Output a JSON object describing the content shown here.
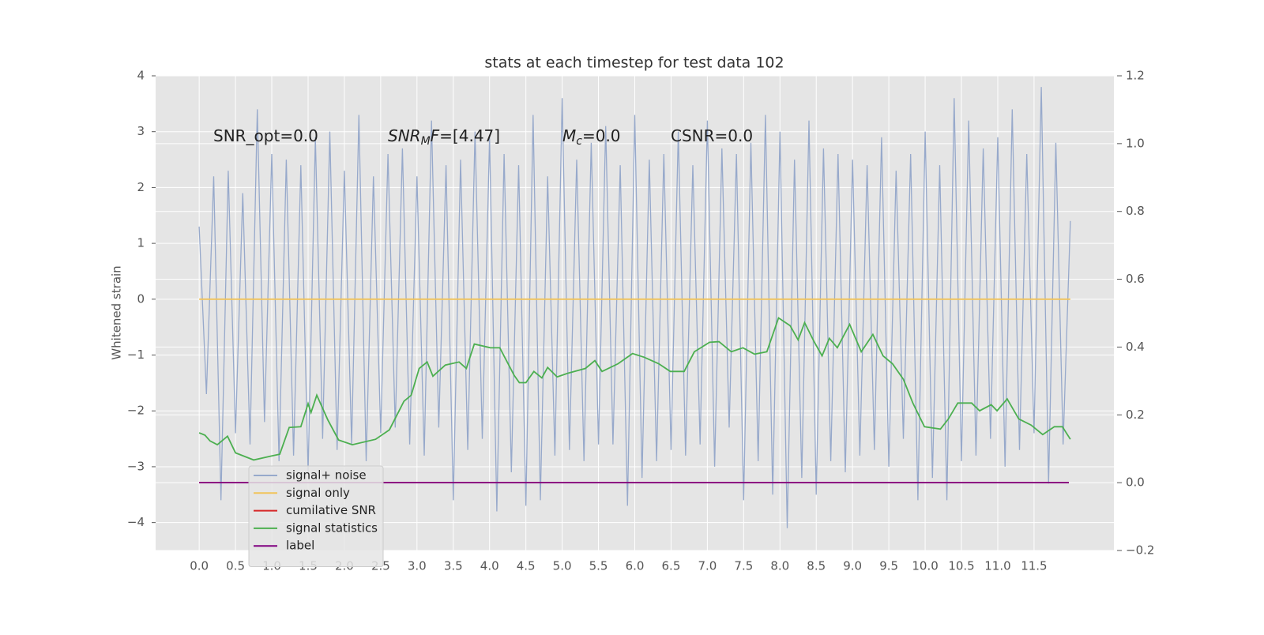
{
  "chart_data": {
    "type": "line",
    "title": "stats at each timestep for test data 102",
    "ylabel": "Whitened strain",
    "xlim": [
      -0.6,
      12.6
    ],
    "ylim": [
      -4.5,
      4
    ],
    "y2lim": [
      -0.2,
      1.2
    ],
    "xticks": [
      {
        "value": 0,
        "label": "0.0"
      },
      {
        "value": 0.5,
        "label": "0.5"
      },
      {
        "value": 1,
        "label": "1.0"
      },
      {
        "value": 1.5,
        "label": "1.5"
      },
      {
        "value": 2,
        "label": "2.0"
      },
      {
        "value": 2.5,
        "label": "2.5"
      },
      {
        "value": 3,
        "label": "3.0"
      },
      {
        "value": 3.5,
        "label": "3.5"
      },
      {
        "value": 4,
        "label": "4.0"
      },
      {
        "value": 4.5,
        "label": "4.5"
      },
      {
        "value": 5,
        "label": "5.0"
      },
      {
        "value": 5.5,
        "label": "5.5"
      },
      {
        "value": 6,
        "label": "6.0"
      },
      {
        "value": 6.5,
        "label": "6.5"
      },
      {
        "value": 7,
        "label": "7.0"
      },
      {
        "value": 7.5,
        "label": "7.5"
      },
      {
        "value": 8,
        "label": "8.0"
      },
      {
        "value": 8.5,
        "label": "8.5"
      },
      {
        "value": 9,
        "label": "9.0"
      },
      {
        "value": 9.5,
        "label": "9.5"
      },
      {
        "value": 10,
        "label": "10.0"
      },
      {
        "value": 10.5,
        "label": "10.5"
      },
      {
        "value": 11,
        "label": "11.0"
      },
      {
        "value": 11.5,
        "label": "11.5"
      }
    ],
    "yticks": [
      {
        "value": -4,
        "label": "−4"
      },
      {
        "value": -3,
        "label": "−3"
      },
      {
        "value": -2,
        "label": "−2"
      },
      {
        "value": -1,
        "label": "−1"
      },
      0,
      1,
      2,
      3,
      4
    ],
    "y2ticks": [
      {
        "value": -0.2,
        "label": "−0.2"
      },
      {
        "value": 0,
        "label": "0.0"
      },
      {
        "value": 0.2,
        "label": "0.2"
      },
      {
        "value": 0.4,
        "label": "0.4"
      },
      {
        "value": 0.6,
        "label": "0.6"
      },
      {
        "value": 0.8,
        "label": "0.8"
      },
      {
        "value": 1,
        "label": "1.0"
      },
      {
        "value": 1.2,
        "label": "1.2"
      }
    ],
    "grid": true,
    "legend": "lower left",
    "annotations": [
      {
        "base": "SNR_opt=0.0"
      },
      {
        "base": "SNR",
        "sub": "M",
        "rest": "F=[4.47]",
        "italic": true
      },
      {
        "base": "M",
        "sub": "c",
        "rest": "=0.0",
        "italic": true
      },
      {
        "base": "CSNR=0.0"
      }
    ],
    "series": [
      {
        "name": "signal+ noise",
        "color": "#97a9cb",
        "x": [
          0,
          0.1,
          0.2,
          0.3,
          0.4,
          0.5,
          0.6,
          0.7,
          0.8,
          0.9,
          1,
          1.1,
          1.2,
          1.3,
          1.4,
          1.5,
          1.6,
          1.7,
          1.8,
          1.9,
          2,
          2.1,
          2.2,
          2.3,
          2.4,
          2.5,
          2.6,
          2.7,
          2.8,
          2.9,
          3,
          3.1,
          3.2,
          3.3,
          3.4,
          3.5,
          3.6,
          3.7,
          3.8,
          3.9,
          4,
          4.1,
          4.2,
          4.3,
          4.4,
          4.5,
          4.6,
          4.7,
          4.8,
          4.9,
          5,
          5.1,
          5.2,
          5.3,
          5.4,
          5.5,
          5.6,
          5.7,
          5.8,
          5.9,
          6,
          6.1,
          6.2,
          6.3,
          6.4,
          6.5,
          6.6,
          6.7,
          6.8,
          6.9,
          7,
          7.1,
          7.2,
          7.3,
          7.4,
          7.5,
          7.6,
          7.7,
          7.8,
          7.9,
          8,
          8.1,
          8.2,
          8.3,
          8.4,
          8.5,
          8.6,
          8.7,
          8.8,
          8.9,
          9,
          9.1,
          9.2,
          9.3,
          9.4,
          9.5,
          9.6,
          9.7,
          9.8,
          9.9,
          10,
          10.1,
          10.2,
          10.3,
          10.4,
          10.5,
          10.6,
          10.7,
          10.8,
          10.9,
          11,
          11.1,
          11.2,
          11.3,
          11.4,
          11.5,
          11.6,
          11.7,
          11.8,
          11.9,
          12
        ],
        "values": [
          1.3,
          -1.7,
          2.2,
          -3.6,
          2.3,
          -2.4,
          1.9,
          -2.6,
          3.4,
          -2.2,
          2.6,
          -2.9,
          2.5,
          -2.8,
          2.4,
          -3.1,
          2.9,
          -2.5,
          3.0,
          -2.7,
          2.3,
          -2.6,
          3.3,
          -2.9,
          2.2,
          -2.4,
          2.6,
          -2.3,
          2.7,
          -2.6,
          2.2,
          -2.8,
          3.2,
          -2.3,
          2.4,
          -3.6,
          2.5,
          -2.7,
          3.0,
          -2.5,
          2.9,
          -3.8,
          2.6,
          -3.1,
          2.4,
          -3.7,
          3.3,
          -3.6,
          2.2,
          -2.8,
          3.6,
          -2.7,
          2.5,
          -2.9,
          2.8,
          -2.6,
          3.1,
          -2.6,
          2.4,
          -3.7,
          3.3,
          -3.2,
          2.5,
          -2.9,
          2.6,
          -2.7,
          3.0,
          -2.8,
          2.4,
          -2.6,
          3.2,
          -3.0,
          2.7,
          -2.3,
          2.6,
          -3.6,
          2.8,
          -2.9,
          3.3,
          -3.5,
          3.0,
          -4.1,
          2.5,
          -3.2,
          3.2,
          -3.5,
          2.7,
          -2.9,
          2.6,
          -3.1,
          2.5,
          -2.8,
          2.4,
          -2.7,
          2.9,
          -3.0,
          2.3,
          -2.5,
          2.6,
          -3.6,
          3.0,
          -3.2,
          2.4,
          -3.6,
          3.6,
          -2.9,
          3.2,
          -2.8,
          2.7,
          -2.5,
          2.9,
          -3.0,
          3.4,
          -2.7,
          2.6,
          -2.4,
          3.8,
          -3.3,
          2.8,
          -2.6,
          1.4
        ]
      },
      {
        "name": "signal only",
        "color": "#f2c45a",
        "x": [
          0,
          12
        ],
        "values": [
          0,
          0
        ]
      },
      {
        "name": "cumilative SNR",
        "color": "#d62728",
        "axis": "y2",
        "x": [
          0,
          11.98
        ],
        "values": [
          0,
          0
        ]
      },
      {
        "name": "signal statistics",
        "color": "#4caf50",
        "axis": "y2",
        "x": [
          0,
          0.08,
          0.15,
          0.25,
          0.39,
          0.5,
          0.75,
          1,
          1.11,
          1.24,
          1.4,
          1.5,
          1.54,
          1.62,
          1.77,
          1.92,
          2.11,
          2.43,
          2.62,
          2.82,
          2.92,
          3.03,
          3.14,
          3.22,
          3.39,
          3.58,
          3.68,
          3.79,
          4.01,
          4.14,
          4.34,
          4.41,
          4.5,
          4.61,
          4.72,
          4.8,
          4.93,
          5.08,
          5.32,
          5.45,
          5.55,
          5.77,
          5.97,
          6.13,
          6.33,
          6.49,
          6.68,
          6.82,
          7.03,
          7.16,
          7.33,
          7.49,
          7.65,
          7.82,
          7.98,
          8.14,
          8.25,
          8.34,
          8.47,
          8.58,
          8.68,
          8.79,
          8.96,
          9.12,
          9.28,
          9.42,
          9.55,
          9.7,
          9.83,
          9.99,
          10.21,
          10.32,
          10.45,
          10.64,
          10.75,
          10.91,
          10.99,
          11.13,
          11.29,
          11.46,
          11.62,
          11.78,
          11.89,
          12
        ],
        "values": [
          0.147,
          0.14,
          0.123,
          0.112,
          0.137,
          0.088,
          0.067,
          0.079,
          0.084,
          0.163,
          0.165,
          0.233,
          0.207,
          0.258,
          0.186,
          0.126,
          0.112,
          0.128,
          0.156,
          0.24,
          0.258,
          0.337,
          0.356,
          0.314,
          0.347,
          0.356,
          0.337,
          0.409,
          0.398,
          0.398,
          0.316,
          0.295,
          0.295,
          0.328,
          0.309,
          0.34,
          0.312,
          0.323,
          0.337,
          0.36,
          0.328,
          0.351,
          0.381,
          0.37,
          0.351,
          0.328,
          0.328,
          0.386,
          0.414,
          0.416,
          0.386,
          0.398,
          0.379,
          0.386,
          0.486,
          0.463,
          0.421,
          0.472,
          0.416,
          0.374,
          0.426,
          0.398,
          0.467,
          0.386,
          0.437,
          0.374,
          0.351,
          0.305,
          0.235,
          0.165,
          0.158,
          0.188,
          0.235,
          0.235,
          0.212,
          0.23,
          0.212,
          0.247,
          0.188,
          0.17,
          0.142,
          0.165,
          0.165,
          0.128
        ]
      },
      {
        "name": "label",
        "color": "#800080",
        "axis": "y2",
        "x": [
          0,
          11.98
        ],
        "values": [
          0,
          0
        ]
      }
    ]
  }
}
